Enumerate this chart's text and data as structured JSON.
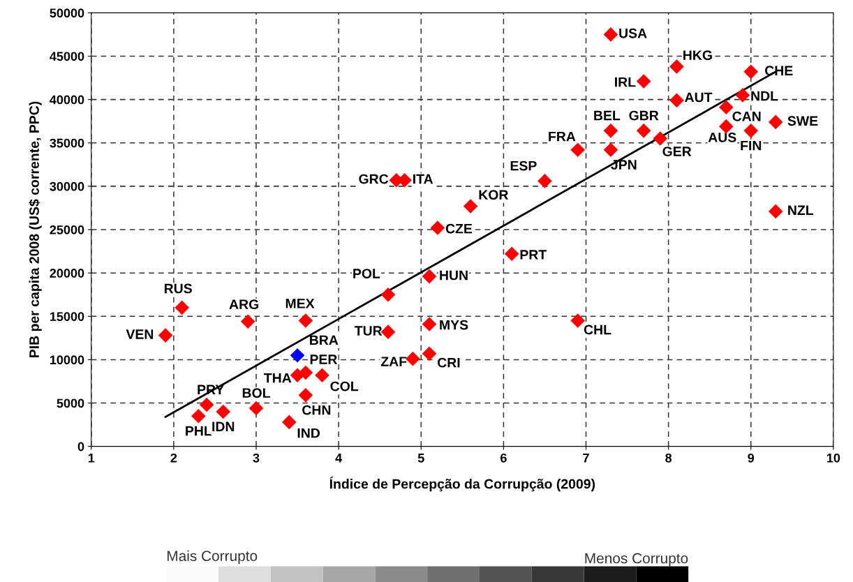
{
  "chart_data": {
    "type": "scatter",
    "xlabel": "Índice de Percepção da Corrupção (2009)",
    "ylabel": "PIB per capita 2008 (US$ corrente, PPC)",
    "xlim": [
      1,
      10
    ],
    "xticks": [
      1,
      2,
      3,
      4,
      5,
      6,
      7,
      8,
      9,
      10
    ],
    "ylim": [
      0,
      50000
    ],
    "yticks": [
      0,
      5000,
      10000,
      15000,
      20000,
      25000,
      30000,
      35000,
      40000,
      45000,
      50000
    ],
    "grid": true,
    "series": [
      {
        "marker": "diamond",
        "x": [
          1.9,
          2.1,
          2.9,
          3.6,
          3.5,
          3.5,
          3.6,
          3.8,
          3.6,
          3.4,
          2.4,
          2.3,
          2.6,
          3.0,
          4.6,
          5.1,
          4.6,
          5.1,
          4.9,
          5.1,
          6.9,
          4.7,
          4.8,
          5.6,
          5.2,
          6.5,
          6.1,
          6.9,
          7.3,
          7.3,
          7.3,
          7.7,
          8.1,
          8.1,
          7.7,
          7.9,
          9.0,
          8.9,
          8.7,
          8.7,
          9.0,
          9.3,
          9.3
        ],
        "values": [
          12800,
          16000,
          14400,
          14500,
          10500,
          8200,
          8500,
          8200,
          5900,
          2800,
          4800,
          3500,
          4000,
          4400,
          17500,
          19600,
          13200,
          14100,
          10100,
          10700,
          14500,
          30700,
          30700,
          27700,
          25200,
          30600,
          22200,
          34200,
          36400,
          34200,
          47500,
          42100,
          43800,
          39900,
          36400,
          35500,
          43200,
          40500,
          39100,
          36900,
          36400,
          37400,
          27100
        ],
        "colors": [
          "#ff0000",
          "#ff0000",
          "#ff0000",
          "#ff0000",
          "#0000ff",
          "#ff0000",
          "#ff0000",
          "#ff0000",
          "#ff0000",
          "#ff0000",
          "#ff0000",
          "#ff0000",
          "#ff0000",
          "#ff0000",
          "#ff0000",
          "#ff0000",
          "#ff0000",
          "#ff0000",
          "#ff0000",
          "#ff0000",
          "#ff0000",
          "#ff0000",
          "#ff0000",
          "#ff0000",
          "#ff0000",
          "#ff0000",
          "#ff0000",
          "#ff0000",
          "#ff0000",
          "#ff0000",
          "#ff0000",
          "#ff0000",
          "#ff0000",
          "#ff0000",
          "#ff0000",
          "#ff0000",
          "#ff0000",
          "#ff0000",
          "#ff0000",
          "#ff0000",
          "#ff0000",
          "#ff0000",
          "#ff0000"
        ]
      },
      {
        "type": "line",
        "color": "#000000",
        "x": [
          1.9,
          9.3
        ],
        "values": [
          3400,
          43200
        ]
      }
    ],
    "annotations": [
      {
        "text": "VEN",
        "x": 1.9,
        "y": 12800
      },
      {
        "text": "RUS",
        "x": 2.1,
        "y": 16000
      },
      {
        "text": "ARG",
        "x": 2.9,
        "y": 14400
      },
      {
        "text": "MEX",
        "x": 3.6,
        "y": 14500
      },
      {
        "text": "BRA",
        "x": 3.5,
        "y": 10500
      },
      {
        "text": "THA",
        "x": 3.5,
        "y": 8200
      },
      {
        "text": "PER",
        "x": 3.6,
        "y": 8500
      },
      {
        "text": "COL",
        "x": 3.8,
        "y": 8200
      },
      {
        "text": "CHN",
        "x": 3.6,
        "y": 5900
      },
      {
        "text": "IND",
        "x": 3.4,
        "y": 2800
      },
      {
        "text": "PRY",
        "x": 2.4,
        "y": 4800
      },
      {
        "text": "PHL",
        "x": 2.3,
        "y": 3500
      },
      {
        "text": "IDN",
        "x": 2.6,
        "y": 4000
      },
      {
        "text": "BOL",
        "x": 3.0,
        "y": 4400
      },
      {
        "text": "POL",
        "x": 4.6,
        "y": 17500
      },
      {
        "text": "HUN",
        "x": 5.1,
        "y": 19600
      },
      {
        "text": "TUR",
        "x": 4.6,
        "y": 13200
      },
      {
        "text": "MYS",
        "x": 5.1,
        "y": 14100
      },
      {
        "text": "ZAF",
        "x": 4.9,
        "y": 10100
      },
      {
        "text": "CRI",
        "x": 5.1,
        "y": 10700
      },
      {
        "text": "CHL",
        "x": 6.9,
        "y": 14500
      },
      {
        "text": "GRC",
        "x": 4.7,
        "y": 30700
      },
      {
        "text": "ITA",
        "x": 4.8,
        "y": 30700
      },
      {
        "text": "KOR",
        "x": 5.6,
        "y": 27700
      },
      {
        "text": "CZE",
        "x": 5.2,
        "y": 25200
      },
      {
        "text": "ESP",
        "x": 6.5,
        "y": 30600
      },
      {
        "text": "PRT",
        "x": 6.1,
        "y": 22200
      },
      {
        "text": "FRA",
        "x": 6.9,
        "y": 34200
      },
      {
        "text": "BEL",
        "x": 7.3,
        "y": 36400
      },
      {
        "text": "JPN",
        "x": 7.3,
        "y": 34200
      },
      {
        "text": "USA",
        "x": 7.3,
        "y": 47500
      },
      {
        "text": "IRL",
        "x": 7.7,
        "y": 42100
      },
      {
        "text": "HKG",
        "x": 8.1,
        "y": 43800
      },
      {
        "text": "AUT",
        "x": 8.1,
        "y": 39900
      },
      {
        "text": "GBR",
        "x": 7.7,
        "y": 36400
      },
      {
        "text": "GER",
        "x": 7.9,
        "y": 35500
      },
      {
        "text": "CHE",
        "x": 9.0,
        "y": 43200
      },
      {
        "text": "NDL",
        "x": 8.9,
        "y": 40500
      },
      {
        "text": "CAN",
        "x": 8.7,
        "y": 39100
      },
      {
        "text": "AUS",
        "x": 8.7,
        "y": 36900
      },
      {
        "text": "FIN",
        "x": 9.0,
        "y": 36400
      },
      {
        "text": "SWE",
        "x": 9.3,
        "y": 37400
      },
      {
        "text": "NZL",
        "x": 9.3,
        "y": 27100
      },
      "Mais Corrupto",
      "Menos Corrupto"
    ]
  }
}
